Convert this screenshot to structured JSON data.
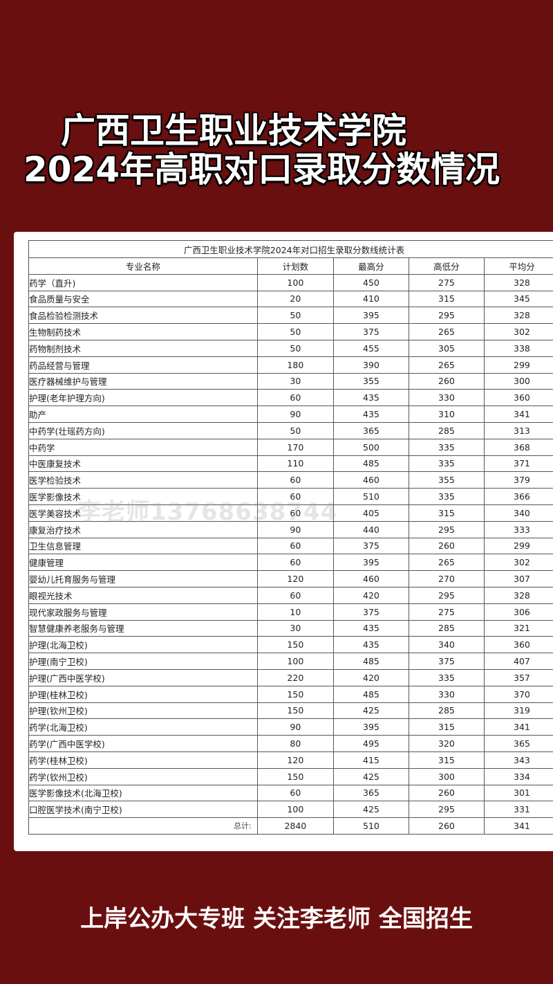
{
  "header": {
    "line1": "广西卫生职业技术学院",
    "line2": "2024年高职对口录取分数情况"
  },
  "table": {
    "caption": "广西卫生职业技术学院2024年对口招生录取分数线统计表",
    "columns": [
      "专业名称",
      "计划数",
      "最高分",
      "高低分",
      "平均分"
    ],
    "rows": [
      [
        "药学（直升)",
        "100",
        "450",
        "275",
        "328"
      ],
      [
        "食品质量与安全",
        "20",
        "410",
        "315",
        "345"
      ],
      [
        "食品检验检测技术",
        "50",
        "395",
        "295",
        "328"
      ],
      [
        "生物制药技术",
        "50",
        "375",
        "265",
        "302"
      ],
      [
        "药物制剂技术",
        "50",
        "455",
        "305",
        "338"
      ],
      [
        "药品经营与管理",
        "180",
        "390",
        "265",
        "299"
      ],
      [
        "医疗器械维护与管理",
        "30",
        "355",
        "260",
        "300"
      ],
      [
        "护理(老年护理方向)",
        "60",
        "435",
        "330",
        "360"
      ],
      [
        "助产",
        "90",
        "435",
        "310",
        "341"
      ],
      [
        "中药学(壮瑶药方向)",
        "50",
        "365",
        "285",
        "313"
      ],
      [
        "中药学",
        "170",
        "500",
        "335",
        "368"
      ],
      [
        "中医康复技术",
        "110",
        "485",
        "335",
        "371"
      ],
      [
        "医学检验技术",
        "60",
        "460",
        "355",
        "379"
      ],
      [
        "医学影像技术",
        "60",
        "510",
        "335",
        "366"
      ],
      [
        "医学美容技术",
        "60",
        "405",
        "315",
        "340"
      ],
      [
        "康复治疗技术",
        "90",
        "440",
        "295",
        "333"
      ],
      [
        "卫生信息管理",
        "60",
        "375",
        "260",
        "299"
      ],
      [
        "健康管理",
        "60",
        "395",
        "265",
        "302"
      ],
      [
        "婴幼儿托育服务与管理",
        "120",
        "460",
        "270",
        "307"
      ],
      [
        "眼视光技术",
        "60",
        "420",
        "295",
        "328"
      ],
      [
        "现代家政服务与管理",
        "10",
        "375",
        "275",
        "306"
      ],
      [
        "智慧健康养老服务与管理",
        "30",
        "435",
        "285",
        "321"
      ],
      [
        "护理(北海卫校)",
        "150",
        "435",
        "340",
        "360"
      ],
      [
        "护理(南宁卫校)",
        "100",
        "485",
        "375",
        "407"
      ],
      [
        "护理(广西中医学校)",
        "220",
        "420",
        "335",
        "357"
      ],
      [
        "护理(桂林卫校)",
        "150",
        "485",
        "330",
        "370"
      ],
      [
        "护理(钦州卫校)",
        "150",
        "425",
        "285",
        "319"
      ],
      [
        "药学(北海卫校)",
        "90",
        "395",
        "315",
        "341"
      ],
      [
        "药学(广西中医学校)",
        "80",
        "495",
        "320",
        "365"
      ],
      [
        "药学(桂林卫校)",
        "120",
        "415",
        "315",
        "343"
      ],
      [
        "药学(钦州卫校)",
        "150",
        "425",
        "300",
        "334"
      ],
      [
        "医学影像技术(北海卫校)",
        "60",
        "365",
        "260",
        "301"
      ],
      [
        "口腔医学技术(南宁卫校)",
        "100",
        "425",
        "295",
        "331"
      ]
    ],
    "total": [
      "总计:",
      "2840",
      "510",
      "260",
      "341"
    ]
  },
  "watermark": "李老师13768638744",
  "footer": "上岸公办大专班  关注李老师 全国招生",
  "colors": {
    "background": "#6a0f10",
    "panel": "#ffffff"
  }
}
